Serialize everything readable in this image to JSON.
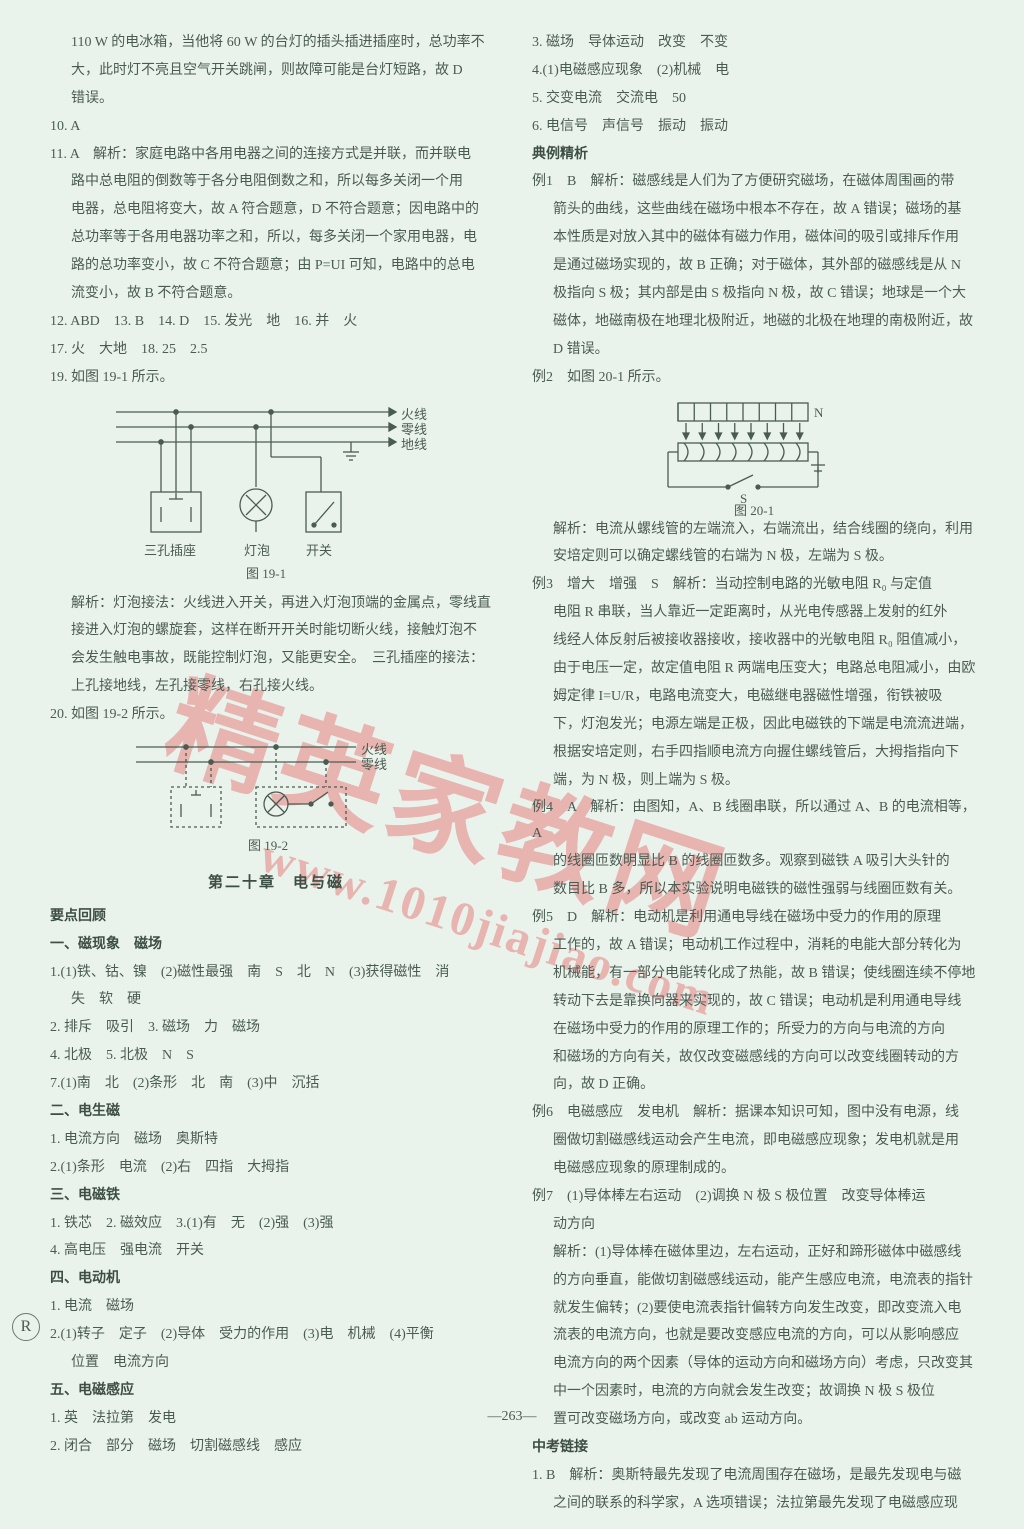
{
  "page_number": "—263—",
  "badge": "R",
  "colors": {
    "background": "#eaf2ec",
    "text": "#4a5c52",
    "bold_text": "#3d4e44",
    "watermark": "rgba(225,50,50,0.32)",
    "diagram_stroke": "#4a5c52"
  },
  "watermark": {
    "line1": "精英家教网",
    "line2": "www.1010jiajiao.com"
  },
  "diagram191": {
    "caption": "图 19-1",
    "labels": {
      "live": "火线",
      "neutral": "零线",
      "earth": "地线",
      "socket": "三孔插座",
      "bulb": "灯泡",
      "switch": "开关"
    }
  },
  "diagram192": {
    "caption": "图 19-2",
    "labels": {
      "live": "火线",
      "neutral": "零线"
    }
  },
  "diagram201": {
    "caption": "图 20-1",
    "labels": {
      "n": "N",
      "s": "S"
    }
  },
  "left": [
    {
      "cls": "indent1",
      "t": "110 W 的电冰箱，当他将 60 W 的台灯的插头插进插座时，总功率不"
    },
    {
      "cls": "indent1",
      "t": "大，此时灯不亮且空气开关跳闸，则故障可能是台灯短路，故 D"
    },
    {
      "cls": "indent1",
      "t": "错误。"
    },
    {
      "cls": "",
      "t": "10. A"
    },
    {
      "cls": "",
      "t": "11. A　解析：家庭电路中各用电器之间的连接方式是并联，而并联电"
    },
    {
      "cls": "indent1",
      "t": "路中总电阻的倒数等于各分电阻倒数之和，所以每多关闭一个用"
    },
    {
      "cls": "indent1",
      "t": "电器，总电阻将变大，故 A 符合题意，D 不符合题意；因电路中的"
    },
    {
      "cls": "indent1",
      "t": "总功率等于各用电器功率之和，所以，每多关闭一个家用电器，电"
    },
    {
      "cls": "indent1",
      "t": "路的总功率变小，故 C 不符合题意；由 P=UI 可知，电路中的总电"
    },
    {
      "cls": "indent1",
      "t": "流变小，故 B 不符合题意。"
    },
    {
      "cls": "",
      "t": "12. ABD　13. B　14. D　15. 发光　地　16. 并　火"
    },
    {
      "cls": "",
      "t": "17. 火　大地　18. 25　2.5"
    },
    {
      "cls": "",
      "t": "19. 如图 19-1 所示。"
    },
    {
      "cls": "diagram191",
      "t": ""
    },
    {
      "cls": "indent1",
      "t": "解析：灯泡接法：火线进入开关，再进入灯泡顶端的金属点，零线直"
    },
    {
      "cls": "indent1",
      "t": "接进入灯泡的螺旋套，这样在断开开关时能切断火线，接触灯泡不"
    },
    {
      "cls": "indent1",
      "t": "会发生触电事故，既能控制灯泡，又能更安全。　三孔插座的接法："
    },
    {
      "cls": "indent1",
      "t": "上孔接地线，左孔接零线，右孔接火线。"
    },
    {
      "cls": "",
      "t": "20. 如图 19-2 所示。"
    },
    {
      "cls": "diagram192",
      "t": ""
    },
    {
      "cls": "section-title",
      "t": "第二十章　电与磁"
    },
    {
      "cls": "sub-bold",
      "t": "要点回顾"
    },
    {
      "cls": "sub-bold",
      "t": "一、磁现象　磁场"
    },
    {
      "cls": "",
      "t": "1.(1)铁、钴、镍　(2)磁性最强　南　S　北　N　(3)获得磁性　消"
    },
    {
      "cls": "indent1",
      "t": "失　软　硬"
    },
    {
      "cls": "",
      "t": "2. 排斥　吸引　3. 磁场　力　磁场"
    },
    {
      "cls": "",
      "t": "4. 北极　5. 北极　N　S"
    },
    {
      "cls": "",
      "t": "7.(1)南　北　(2)条形　北　南　(3)中　沉括"
    },
    {
      "cls": "sub-bold",
      "t": "二、电生磁"
    },
    {
      "cls": "",
      "t": "1. 电流方向　磁场　奥斯特"
    },
    {
      "cls": "",
      "t": "2.(1)条形　电流　(2)右　四指　大拇指"
    },
    {
      "cls": "sub-bold",
      "t": "三、电磁铁"
    },
    {
      "cls": "",
      "t": "1. 铁芯　2. 磁效应　3.(1)有　无　(2)强　(3)强"
    },
    {
      "cls": "",
      "t": "4. 高电压　强电流　开关"
    },
    {
      "cls": "sub-bold",
      "t": "四、电动机"
    },
    {
      "cls": "",
      "t": "1. 电流　磁场"
    },
    {
      "cls": "",
      "t": "2.(1)转子　定子　(2)导体　受力的作用　(3)电　机械　(4)平衡"
    },
    {
      "cls": "indent1",
      "t": "位置　电流方向"
    },
    {
      "cls": "sub-bold",
      "t": "五、电磁感应"
    },
    {
      "cls": "",
      "t": "1. 英　法拉第　发电"
    },
    {
      "cls": "",
      "t": "2. 闭合　部分　磁场　切割磁感线　感应"
    }
  ],
  "right": [
    {
      "cls": "",
      "t": "3. 磁场　导体运动　改变　不变"
    },
    {
      "cls": "",
      "t": "4.(1)电磁感应现象　(2)机械　电"
    },
    {
      "cls": "",
      "t": "5. 交变电流　交流电　50"
    },
    {
      "cls": "",
      "t": "6. 电信号　声信号　振动　振动"
    },
    {
      "cls": "sub-bold",
      "t": "典例精析"
    },
    {
      "cls": "",
      "t": "例1　B　解析：磁感线是人们为了方便研究磁场，在磁体周围画的带"
    },
    {
      "cls": "indent1",
      "t": "箭头的曲线，这些曲线在磁场中根本不存在，故 A 错误；磁场的基"
    },
    {
      "cls": "indent1",
      "t": "本性质是对放入其中的磁体有磁力作用，磁体间的吸引或排斥作用"
    },
    {
      "cls": "indent1",
      "t": "是通过磁场实现的，故 B 正确；对于磁体，其外部的磁感线是从 N"
    },
    {
      "cls": "indent1",
      "t": "极指向 S 极；其内部是由 S 极指向 N 极，故 C 错误；地球是一个大"
    },
    {
      "cls": "indent1",
      "t": "磁体，地磁南极在地理北极附近，地磁的北极在地理的南极附近，故"
    },
    {
      "cls": "indent1",
      "t": "D 错误。"
    },
    {
      "cls": "",
      "t": "例2　如图 20-1 所示。"
    },
    {
      "cls": "diagram201",
      "t": ""
    },
    {
      "cls": "indent1",
      "t": "解析：电流从螺线管的左端流入，右端流出，结合线圈的绕向，利用"
    },
    {
      "cls": "indent1",
      "t": "安培定则可以确定螺线管的右端为 N 极，左端为 S 极。"
    },
    {
      "cls": "",
      "t": "例3　增大　增强　S　解析：当动控制电路的光敏电阻 R₀ 与定值"
    },
    {
      "cls": "indent1",
      "t": "电阻 R 串联，当人靠近一定距离时，从光电传感器上发射的红外"
    },
    {
      "cls": "indent1",
      "t": "线经人体反射后被接收器接收，接收器中的光敏电阻 R₀ 阻值减小，"
    },
    {
      "cls": "indent1",
      "t": "由于电压一定，故定值电阻 R 两端电压变大；电路总电阻减小，由欧"
    },
    {
      "cls": "indent1",
      "t": "姆定律 I=U/R，电路电流变大，电磁继电器磁性增强，衔铁被吸"
    },
    {
      "cls": "indent1",
      "t": "下，灯泡发光；电源左端是正极，因此电磁铁的下端是电流流进端，"
    },
    {
      "cls": "indent1",
      "t": "根据安培定则，右手四指顺电流方向握住螺线管后，大拇指指向下"
    },
    {
      "cls": "indent1",
      "t": "端，为 N 极，则上端为 S 极。"
    },
    {
      "cls": "",
      "t": "例4　A　解析：由图知，A、B 线圈串联，所以通过 A、B 的电流相等，A"
    },
    {
      "cls": "indent1",
      "t": "的线圈匝数明显比 B 的线圈匝数多。观察到磁铁 A 吸引大头针的"
    },
    {
      "cls": "indent1",
      "t": "数目比 B 多，所以本实验说明电磁铁的磁性强弱与线圈匝数有关。"
    },
    {
      "cls": "",
      "t": "例5　D　解析：电动机是利用通电导线在磁场中受力的作用的原理"
    },
    {
      "cls": "indent1",
      "t": "工作的，故 A 错误；电动机工作过程中，消耗的电能大部分转化为"
    },
    {
      "cls": "indent1",
      "t": "机械能，有一部分电能转化成了热能，故 B 错误；使线圈连续不停地"
    },
    {
      "cls": "indent1",
      "t": "转动下去是靠换向器来实现的，故 C 错误；电动机是利用通电导线"
    },
    {
      "cls": "indent1",
      "t": "在磁场中受力的作用的原理工作的；所受力的方向与电流的方向"
    },
    {
      "cls": "indent1",
      "t": "和磁场的方向有关，故仅改变磁感线的方向可以改变线圈转动的方"
    },
    {
      "cls": "indent1",
      "t": "向，故 D 正确。"
    },
    {
      "cls": "",
      "t": "例6　电磁感应　发电机　解析：据课本知识可知，图中没有电源，线"
    },
    {
      "cls": "indent1",
      "t": "圈做切割磁感线运动会产生电流，即电磁感应现象；发电机就是用"
    },
    {
      "cls": "indent1",
      "t": "电磁感应现象的原理制成的。"
    },
    {
      "cls": "",
      "t": "例7　(1)导体棒左右运动　(2)调换 N 极 S 极位置　改变导体棒运"
    },
    {
      "cls": "indent1",
      "t": "动方向"
    },
    {
      "cls": "indent1",
      "t": "解析：(1)导体棒在磁体里边，左右运动，正好和蹄形磁体中磁感线"
    },
    {
      "cls": "indent1",
      "t": "的方向垂直，能做切割磁感线运动，能产生感应电流，电流表的指针"
    },
    {
      "cls": "indent1",
      "t": "就发生偏转；(2)要使电流表指针偏转方向发生改变，即改变流入电"
    },
    {
      "cls": "indent1",
      "t": "流表的电流方向，也就是要改变感应电流的方向，可以从影响感应"
    },
    {
      "cls": "indent1",
      "t": "电流方向的两个因素（导体的运动方向和磁场方向）考虑，只改变其"
    },
    {
      "cls": "indent1",
      "t": "中一个因素时，电流的方向就会发生改变；故调换 N 极 S 极位"
    },
    {
      "cls": "indent1",
      "t": "置可改变磁场方向，或改变 ab 运动方向。"
    },
    {
      "cls": "sub-bold",
      "t": "中考链接"
    },
    {
      "cls": "",
      "t": "1. B　解析：奥斯特最先发现了电流周围存在磁场，是最先发现电与磁"
    },
    {
      "cls": "indent1",
      "t": "之间的联系的科学家，A 选项错误；法拉第最先发现了电磁感应现"
    }
  ]
}
